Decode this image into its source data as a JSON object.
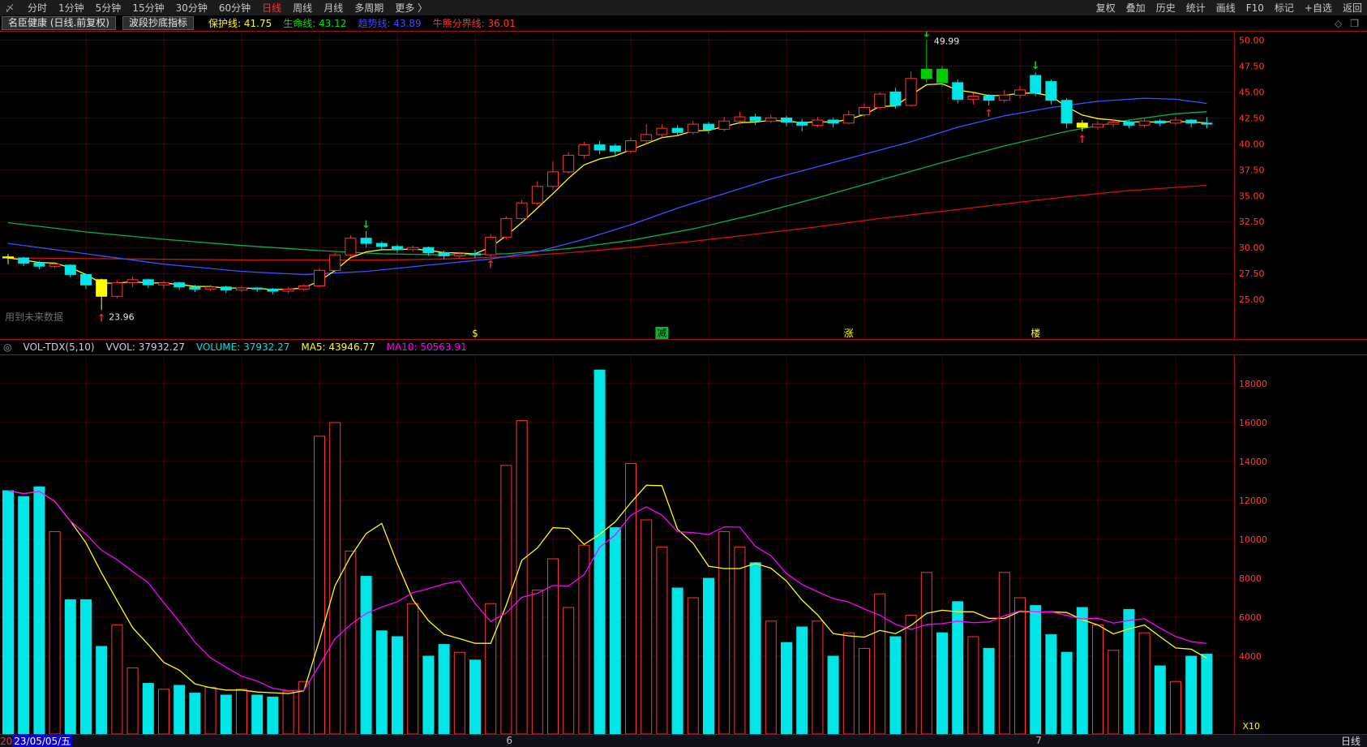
{
  "toolbar": {
    "logo_icon": "〆",
    "periods": [
      "分时",
      "1分钟",
      "5分钟",
      "15分钟",
      "30分钟",
      "60分钟",
      "日线",
      "周线",
      "月线",
      "多周期",
      "更多 〉"
    ],
    "active_period": "日线",
    "tools": [
      "复权",
      "叠加",
      "历史",
      "统计",
      "画线",
      "F10",
      "标记",
      "+自选",
      "返回"
    ]
  },
  "tabbar": {
    "stock_tab": "名臣健康 (日线.前复权)",
    "indicator_tab": "波段抄底指标",
    "legend": [
      {
        "label": "保护线: 41.75",
        "color": "#ffff00"
      },
      {
        "label": "生命线: 43.12",
        "color": "#00e000"
      },
      {
        "label": "趋势线: 43.89",
        "color": "#4646ff"
      },
      {
        "label": "牛熊分界线: 36.01",
        "color": "#ff3232"
      }
    ],
    "icons": [
      "◇",
      "❐"
    ]
  },
  "vol_header": {
    "collapse_icon": "◎",
    "items": [
      {
        "text": "VOL-TDX(5,10)",
        "color": "#d0d0d0"
      },
      {
        "text": "VVOL: 37932.27",
        "color": "#d0d0d0"
      },
      {
        "text": "VOLUME: 37932.27",
        "color": "#00e0e0"
      },
      {
        "text": "MA5: 43946.77",
        "color": "#ffff00"
      },
      {
        "text": "MA10: 50563.91",
        "color": "#ff00ff"
      }
    ]
  },
  "volume_pane": {
    "multiplier": "X10"
  },
  "bottom": {
    "date_prefix": "20",
    "date_selected": "23/05/05/五",
    "months": [
      {
        "i": 32,
        "label": "6"
      },
      {
        "i": 66,
        "label": "7"
      }
    ],
    "period": "日线"
  },
  "chart_data": {
    "type": "candlestick+volume",
    "title": "名臣健康 日线 前复权 波段抄底指标",
    "watermark": "用到未来数据",
    "colors": {
      "up": "#ff3232",
      "down": "#00e5e5",
      "mark_yellow": "#ffff00",
      "mark_green": "#00cc00",
      "grid": "#4a0000",
      "border": "#9b1010",
      "axis_text": "#ff3c3c",
      "ma_yellow": "#ffff00",
      "ma_blue": "#3c50ff",
      "ma_green": "#00b050",
      "ma_red": "#d01010",
      "vol_ma5": "#ffff00",
      "vol_ma10": "#ff00ff",
      "arrow_up": "#ff2020",
      "arrow_down": "#00e000",
      "label": "#e8e8e8",
      "watermark": "#6e6e6e"
    },
    "y_axis": {
      "min": 21.1,
      "max": 50.9,
      "ticks": [
        50,
        47.5,
        45,
        42.5,
        40,
        37.5,
        35,
        32.5,
        30,
        27.5,
        25
      ]
    },
    "volume_axis": {
      "min": 0,
      "max": 19500,
      "ticks": [
        18000,
        16000,
        14000,
        12000,
        10000,
        8000,
        6000,
        4000
      ]
    },
    "candles": [
      [
        29.1,
        29.0,
        28.4,
        29.4,
        "Y",
        "",
        ""
      ],
      [
        29.0,
        28.5,
        28.2,
        29.1
      ],
      [
        28.5,
        28.2,
        27.9,
        28.7
      ],
      [
        28.2,
        28.4,
        28.0,
        28.6
      ],
      [
        28.3,
        27.4,
        27.1,
        28.4
      ],
      [
        27.4,
        26.4,
        26.0,
        27.5
      ],
      [
        26.9,
        25.3,
        23.96,
        27.0,
        "Y",
        "au",
        "23.96"
      ],
      [
        25.3,
        26.6,
        25.1,
        26.8
      ],
      [
        26.6,
        26.9,
        26.2,
        27.2
      ],
      [
        26.9,
        26.4,
        26.1,
        27.0
      ],
      [
        26.4,
        26.6,
        26.0,
        26.8
      ],
      [
        26.6,
        26.2,
        25.9,
        26.7
      ],
      [
        26.2,
        26.0,
        25.7,
        26.4
      ],
      [
        26.0,
        26.2,
        25.8,
        26.4
      ],
      [
        26.2,
        25.9,
        25.6,
        26.3
      ],
      [
        25.9,
        26.1,
        25.7,
        26.3
      ],
      [
        26.1,
        26.0,
        25.7,
        26.2
      ],
      [
        26.0,
        25.8,
        25.5,
        26.1
      ],
      [
        25.8,
        26.0,
        25.6,
        26.2
      ],
      [
        26.0,
        26.3,
        25.8,
        26.5
      ],
      [
        26.3,
        27.8,
        26.2,
        28.0
      ],
      [
        27.8,
        29.3,
        27.6,
        29.5
      ],
      [
        29.3,
        30.9,
        29.1,
        31.2
      ],
      [
        30.9,
        30.4,
        30.0,
        31.6,
        "",
        "ad",
        ""
      ],
      [
        30.4,
        30.1,
        29.8,
        30.6
      ],
      [
        30.1,
        29.8,
        29.5,
        30.3
      ],
      [
        29.8,
        30.0,
        29.6,
        30.2
      ],
      [
        30.0,
        29.5,
        29.2,
        30.1
      ],
      [
        29.5,
        29.2,
        28.9,
        29.7
      ],
      [
        29.2,
        29.4,
        29.0,
        29.6
      ],
      [
        29.4,
        29.3,
        29.0,
        29.8
      ],
      [
        29.3,
        31.0,
        29.1,
        31.3,
        "",
        "au",
        ""
      ],
      [
        31.0,
        32.8,
        30.8,
        33.0
      ],
      [
        32.8,
        34.3,
        32.6,
        34.6
      ],
      [
        34.3,
        35.9,
        34.1,
        36.4
      ],
      [
        35.9,
        37.3,
        35.7,
        38.3
      ],
      [
        37.3,
        38.9,
        37.1,
        39.2
      ],
      [
        38.9,
        39.9,
        38.6,
        40.2
      ],
      [
        39.9,
        39.4,
        39.0,
        40.3
      ],
      [
        39.8,
        39.3,
        38.9,
        40.0
      ],
      [
        39.3,
        40.3,
        39.1,
        40.6
      ],
      [
        40.3,
        40.9,
        40.0,
        41.9
      ],
      [
        40.9,
        41.5,
        40.6,
        41.9
      ],
      [
        41.5,
        41.1,
        40.7,
        41.8
      ],
      [
        41.1,
        41.9,
        40.9,
        42.2
      ],
      [
        41.9,
        41.4,
        41.0,
        42.1
      ],
      [
        41.4,
        42.2,
        41.2,
        42.6
      ],
      [
        42.2,
        42.6,
        41.9,
        43.1
      ],
      [
        42.6,
        42.2,
        41.8,
        42.9
      ],
      [
        42.2,
        42.5,
        42.0,
        42.8
      ],
      [
        42.5,
        42.1,
        41.7,
        42.7
      ],
      [
        42.1,
        41.8,
        41.2,
        42.4
      ],
      [
        41.8,
        42.3,
        41.6,
        42.6
      ],
      [
        42.3,
        42.0,
        41.6,
        42.5
      ],
      [
        42.0,
        42.8,
        41.9,
        43.2
      ],
      [
        42.8,
        43.5,
        42.6,
        43.9
      ],
      [
        43.5,
        44.8,
        43.3,
        45.0
      ],
      [
        45.0,
        43.7,
        43.4,
        45.4
      ],
      [
        43.7,
        46.3,
        43.6,
        47.0
      ],
      [
        46.3,
        47.2,
        45.9,
        49.99,
        "G",
        "ad",
        "49.99"
      ],
      [
        47.2,
        45.9,
        45.5,
        47.5,
        "G",
        "",
        ""
      ],
      [
        45.9,
        44.3,
        43.9,
        46.2
      ],
      [
        44.3,
        44.6,
        43.8,
        44.9
      ],
      [
        44.6,
        44.2,
        43.7,
        44.8,
        "",
        "au",
        ""
      ],
      [
        44.2,
        44.7,
        44.0,
        45.2
      ],
      [
        44.7,
        45.2,
        44.4,
        45.6
      ],
      [
        46.6,
        44.9,
        44.6,
        46.9,
        "",
        "ad",
        ""
      ],
      [
        46.0,
        44.2,
        43.8,
        46.2
      ],
      [
        44.2,
        42.0,
        41.5,
        44.4
      ],
      [
        42.0,
        41.6,
        41.2,
        42.3,
        "Y",
        "au",
        ""
      ],
      [
        41.6,
        41.9,
        41.4,
        42.2
      ],
      [
        41.9,
        42.1,
        41.6,
        42.4
      ],
      [
        42.1,
        41.8,
        41.5,
        42.3
      ],
      [
        41.8,
        42.2,
        41.6,
        42.5
      ],
      [
        42.2,
        42.0,
        41.7,
        42.4
      ],
      [
        42.0,
        42.3,
        41.8,
        42.6
      ],
      [
        42.3,
        42.0,
        41.6,
        42.4
      ],
      [
        42.0,
        41.9,
        41.5,
        42.6
      ]
    ],
    "volumes": [
      12500,
      12200,
      12700,
      10400,
      6900,
      6900,
      4500,
      5600,
      3400,
      2600,
      2300,
      2500,
      2100,
      2400,
      2000,
      2300,
      2000,
      1900,
      2200,
      2700,
      15300,
      16000,
      9400,
      8100,
      5300,
      5000,
      6700,
      4000,
      4600,
      4200,
      3800,
      6700,
      13800,
      16100,
      7400,
      9000,
      6500,
      9700,
      18700,
      10600,
      13900,
      11000,
      9600,
      7500,
      7000,
      8000,
      10400,
      9600,
      8800,
      5800,
      4700,
      5500,
      5800,
      4000,
      5200,
      4400,
      7200,
      5000,
      6100,
      8300,
      5200,
      6800,
      5000,
      4400,
      8300,
      7000,
      6600,
      5100,
      4200,
      6500,
      5600,
      4300,
      6400,
      5200,
      3500,
      2700,
      4000,
      4100
    ],
    "overlays": {
      "protect_line": {
        "name": "保护线",
        "type": "ema4_of_close",
        "last": 41.75
      },
      "trend_points": [
        [
          0,
          30.4
        ],
        [
          5,
          29.4
        ],
        [
          10,
          28.4
        ],
        [
          15,
          27.7
        ],
        [
          19,
          27.4
        ],
        [
          23,
          27.7
        ],
        [
          27,
          28.3
        ],
        [
          31,
          28.9
        ],
        [
          34,
          29.6
        ],
        [
          37,
          30.8
        ],
        [
          40,
          32.2
        ],
        [
          43,
          33.8
        ],
        [
          46,
          35.2
        ],
        [
          49,
          36.6
        ],
        [
          52,
          37.8
        ],
        [
          55,
          39.0
        ],
        [
          58,
          40.2
        ],
        [
          61,
          41.6
        ],
        [
          64,
          42.7
        ],
        [
          67,
          43.5
        ],
        [
          70,
          44.1
        ],
        [
          73,
          44.4
        ],
        [
          75,
          44.3
        ],
        [
          77,
          43.9
        ]
      ],
      "life_points": [
        [
          0,
          32.4
        ],
        [
          5,
          31.5
        ],
        [
          10,
          30.8
        ],
        [
          15,
          30.2
        ],
        [
          20,
          29.7
        ],
        [
          24,
          29.4
        ],
        [
          28,
          29.3
        ],
        [
          32,
          29.4
        ],
        [
          36,
          29.9
        ],
        [
          40,
          30.7
        ],
        [
          44,
          31.8
        ],
        [
          48,
          33.2
        ],
        [
          52,
          34.8
        ],
        [
          56,
          36.5
        ],
        [
          60,
          38.2
        ],
        [
          64,
          39.8
        ],
        [
          68,
          41.2
        ],
        [
          72,
          42.3
        ],
        [
          75,
          42.9
        ],
        [
          77,
          43.1
        ]
      ],
      "bull_bear_points": [
        [
          0,
          29.0
        ],
        [
          8,
          28.9
        ],
        [
          16,
          28.8
        ],
        [
          24,
          28.8
        ],
        [
          28,
          28.9
        ],
        [
          32,
          29.1
        ],
        [
          36,
          29.5
        ],
        [
          40,
          30.0
        ],
        [
          44,
          30.6
        ],
        [
          48,
          31.3
        ],
        [
          52,
          32.0
        ],
        [
          56,
          32.8
        ],
        [
          60,
          33.5
        ],
        [
          64,
          34.2
        ],
        [
          68,
          34.9
        ],
        [
          72,
          35.5
        ],
        [
          77,
          36.0
        ]
      ]
    },
    "signals": [
      {
        "i": 30,
        "text": "$",
        "fg": "#ffff00",
        "bg": ""
      },
      {
        "i": 42,
        "text": "减",
        "fg": "#000000",
        "bg": "#00bb33"
      },
      {
        "i": 54,
        "text": "涨",
        "fg": "#ffff00",
        "bg": ""
      },
      {
        "i": 66,
        "text": "楼",
        "fg": "#ffff00",
        "bg": ""
      }
    ]
  }
}
